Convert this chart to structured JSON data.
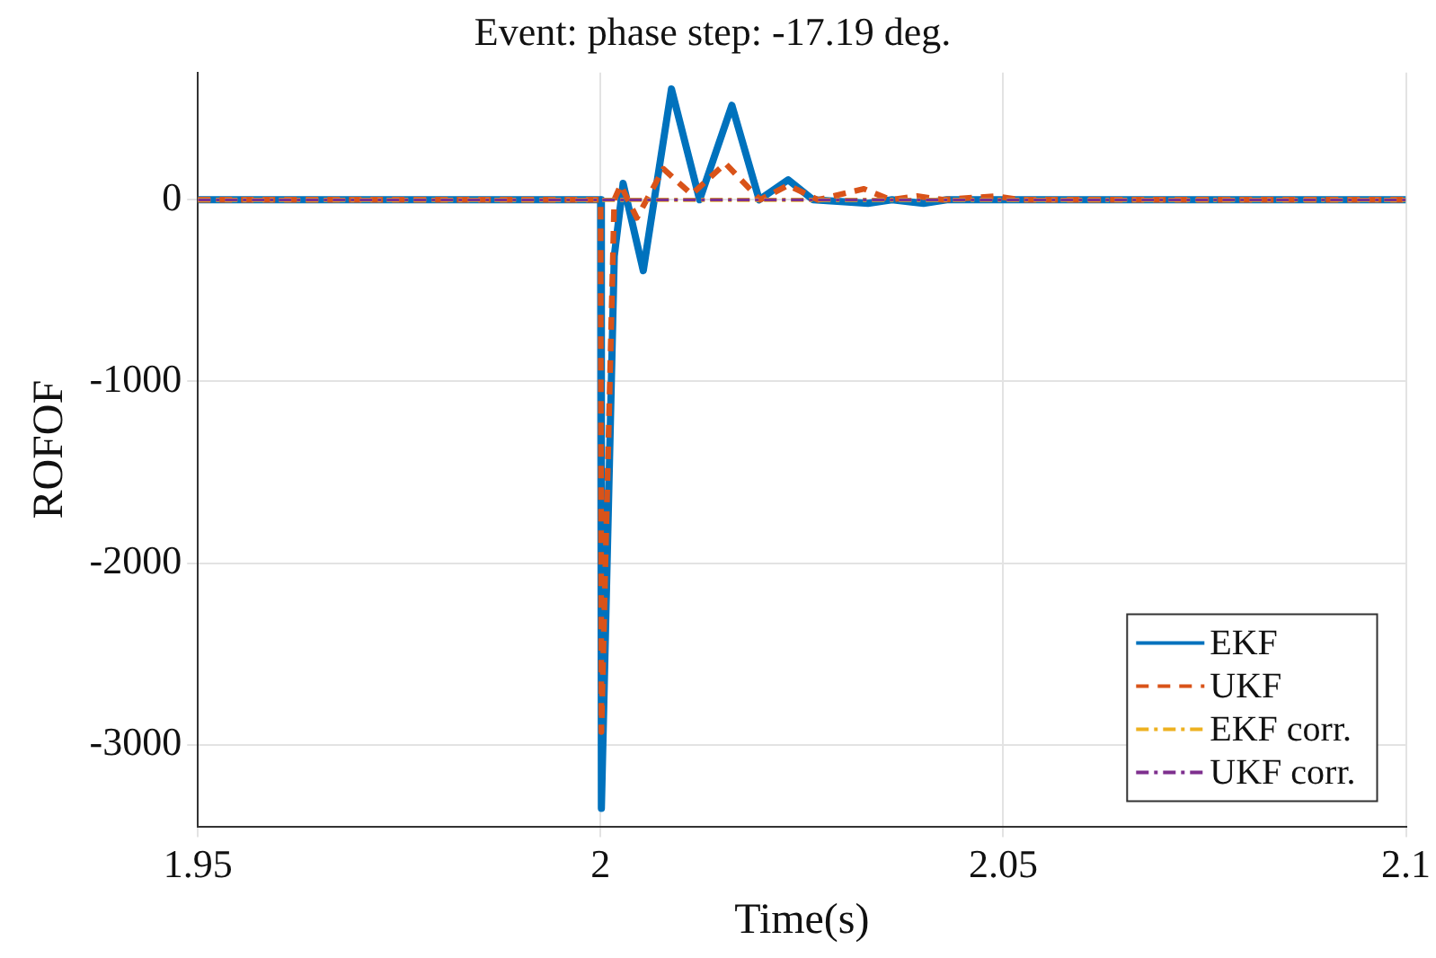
{
  "chart_data": {
    "type": "line",
    "title": "Event: phase step: -17.19 deg.",
    "xlabel": "Time(s)",
    "ylabel": "ROFOF",
    "xlim": [
      1.95,
      2.1
    ],
    "xticks": [
      1.95,
      2,
      2.05,
      2.1
    ],
    "ylim": [
      -3450,
      700
    ],
    "yticks": [
      -3000,
      -2000,
      -1000,
      0
    ],
    "grid": true,
    "legend": "bottom right",
    "marker": "none",
    "series": [
      {
        "name": "EKF",
        "color": "#0072bd",
        "line_style": "solid",
        "x": [
          1.95,
          2.0,
          2.0001,
          2.0017,
          2.0028,
          2.0053,
          2.0088,
          2.0123,
          2.0163,
          2.0197,
          2.0233,
          2.0264,
          2.0332,
          2.0362,
          2.0401,
          2.043,
          2.1
        ],
        "values": [
          0,
          0,
          -3350,
          -310,
          90,
          -390,
          610,
          0,
          520,
          0,
          110,
          0,
          -20,
          0,
          -20,
          0,
          0
        ]
      },
      {
        "name": "UKF",
        "color": "#d95319",
        "line_style": "dashed",
        "x": [
          1.95,
          2.0,
          2.0001,
          2.0017,
          2.0025,
          2.0045,
          2.0078,
          2.0113,
          2.0155,
          2.0198,
          2.0233,
          2.027,
          2.0327,
          2.036,
          2.0393,
          2.0425,
          2.049,
          2.052,
          2.1
        ],
        "values": [
          0,
          0,
          -2930,
          0,
          80,
          -100,
          170,
          30,
          200,
          0,
          80,
          0,
          60,
          0,
          20,
          0,
          20,
          0,
          0
        ]
      },
      {
        "name": "EKF corr.",
        "color": "#edb120",
        "line_style": "dashdot",
        "x": [
          1.95,
          2.1
        ],
        "values": [
          0,
          0
        ]
      },
      {
        "name": "UKF corr.",
        "color": "#7e2f8e",
        "line_style": "dashdot",
        "x": [
          1.95,
          2.1
        ],
        "values": [
          0,
          0
        ]
      }
    ]
  }
}
